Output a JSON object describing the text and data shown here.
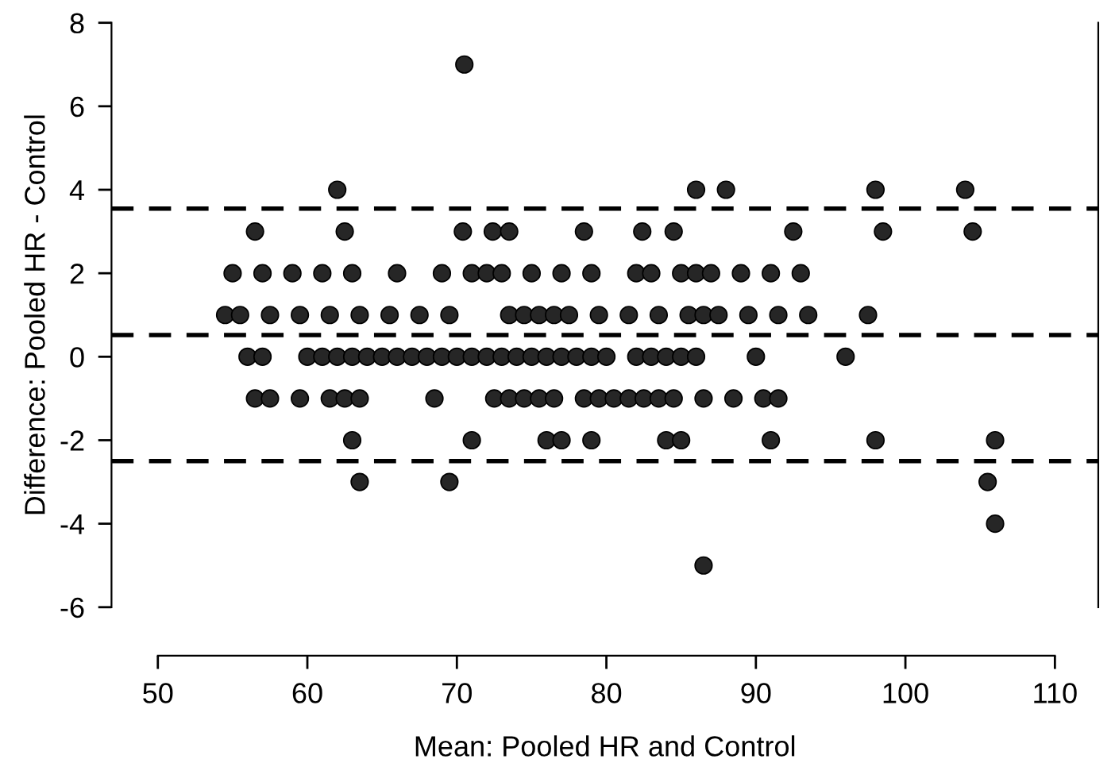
{
  "chart_data": {
    "type": "scatter",
    "xlabel": "Mean: Pooled HR and Control",
    "ylabel": "Difference: Pooled HR - Control",
    "xlim": [
      46.9,
      112.9
    ],
    "ylim": [
      -6,
      8
    ],
    "xticks": [
      50,
      60,
      70,
      80,
      90,
      100,
      110
    ],
    "yticks": [
      -6,
      -4,
      -2,
      0,
      2,
      4,
      6,
      8
    ],
    "grid": false,
    "legend": false,
    "marker": "circle",
    "ref_lines": [
      {
        "axis": "y",
        "value": 3.55,
        "line_style": "dashed",
        "color": "#000000"
      },
      {
        "axis": "y",
        "value": 0.52,
        "line_style": "dashed",
        "color": "#000000"
      },
      {
        "axis": "y",
        "value": -2.5,
        "line_style": "dashed",
        "color": "#000000"
      }
    ],
    "series": [
      {
        "color": "#262626",
        "x": [
          70.5,
          62.0,
          86.0,
          88.0,
          98.0,
          104.0,
          56.5,
          62.5,
          70.4,
          72.4,
          73.5,
          78.5,
          82.4,
          84.5,
          92.5,
          98.5,
          104.5,
          55.0,
          57.0,
          59.0,
          61.0,
          63.0,
          66.0,
          69.0,
          71.0,
          72.0,
          73.0,
          75.0,
          77.0,
          79.0,
          82.0,
          83.0,
          85.0,
          86.0,
          87.0,
          89.0,
          91.0,
          93.0,
          54.5,
          55.5,
          57.5,
          59.5,
          61.5,
          63.5,
          65.5,
          67.5,
          69.5,
          73.5,
          74.5,
          75.5,
          76.5,
          77.5,
          79.5,
          81.5,
          83.5,
          85.5,
          86.5,
          87.5,
          89.5,
          91.5,
          93.5,
          97.5,
          56.0,
          57.0,
          60,
          61,
          62,
          63,
          64,
          65,
          66,
          67,
          68,
          69,
          70,
          71,
          72,
          73,
          74,
          75,
          76,
          77,
          78,
          79,
          80,
          82,
          83,
          84,
          85,
          86,
          90,
          96,
          56.5,
          57.5,
          59.5,
          61.5,
          62.5,
          63.5,
          68.5,
          72.5,
          73.5,
          74.5,
          75.5,
          76.5,
          78.5,
          79.5,
          80.5,
          81.5,
          82.5,
          83.5,
          84.5,
          86.5,
          88.5,
          90.5,
          91.5,
          63.0,
          71.0,
          76.0,
          77.0,
          79.0,
          84.0,
          85.0,
          91.0,
          98.0,
          106.0,
          63.5,
          69.5,
          105.5,
          106.0,
          86.5
        ],
        "values": [
          7,
          4,
          4,
          4,
          4,
          4,
          3,
          3,
          3,
          3,
          3,
          3,
          3,
          3,
          3,
          3,
          3,
          2,
          2,
          2,
          2,
          2,
          2,
          2,
          2,
          2,
          2,
          2,
          2,
          2,
          2,
          2,
          2,
          2,
          2,
          2,
          2,
          2,
          1,
          1,
          1,
          1,
          1,
          1,
          1,
          1,
          1,
          1,
          1,
          1,
          1,
          1,
          1,
          1,
          1,
          1,
          1,
          1,
          1,
          1,
          1,
          1,
          0,
          0,
          0,
          0,
          0,
          0,
          0,
          0,
          0,
          0,
          0,
          0,
          0,
          0,
          0,
          0,
          0,
          0,
          0,
          0,
          0,
          0,
          0,
          0,
          0,
          0,
          0,
          0,
          0,
          0,
          -1,
          -1,
          -1,
          -1,
          -1,
          -1,
          -1,
          -1,
          -1,
          -1,
          -1,
          -1,
          -1,
          -1,
          -1,
          -1,
          -1,
          -1,
          -1,
          -1,
          -1,
          -1,
          -1,
          -2,
          -2,
          -2,
          -2,
          -2,
          -2,
          -2,
          -2,
          -2,
          -2,
          -3,
          -3,
          -3,
          -4,
          -5
        ]
      }
    ]
  }
}
